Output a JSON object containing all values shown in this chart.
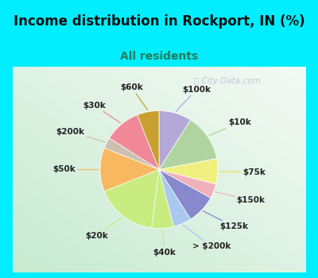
{
  "title": "Income distribution in Rockport, IN (%)",
  "subtitle": "All residents",
  "title_color": "#111111",
  "subtitle_color": "#2a7a5a",
  "bg_cyan": "#00eeff",
  "labels": [
    "$100k",
    "$10k",
    "$75k",
    "$150k",
    "$125k",
    "> $200k",
    "$40k",
    "$20k",
    "$50k",
    "$200k",
    "$30k",
    "$60k"
  ],
  "values": [
    9,
    13,
    7,
    4,
    8,
    5,
    6,
    17,
    12,
    3,
    10,
    6
  ],
  "colors": [
    "#b3a8d8",
    "#b0d4a0",
    "#f0f080",
    "#f0b0bc",
    "#8888cc",
    "#a8c8f0",
    "#c8ec80",
    "#c8ec80",
    "#f8b860",
    "#ccc0b0",
    "#f08898",
    "#c8a030"
  ],
  "line_colors": [
    "#b3a8d8",
    "#b0d4a0",
    "#e8e060",
    "#f0b0bc",
    "#8888cc",
    "#a8c8f0",
    "#c8ec80",
    "#c8ec80",
    "#f8b860",
    "#ccc0b0",
    "#f08898",
    "#c8a030"
  ],
  "figsize": [
    4.0,
    3.5
  ],
  "dpi": 100,
  "title_fontsize": 12,
  "subtitle_fontsize": 10,
  "label_fontsize": 7.5
}
